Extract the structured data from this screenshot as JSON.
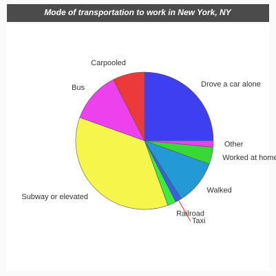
{
  "chart_data": {
    "type": "pie",
    "title": "Mode of transportation to work in New York, NY",
    "categories": [
      "Drove a car alone",
      "Other",
      "Worked at home",
      "Walked",
      "Taxi",
      "Railroad",
      "Subway or elevated",
      "Bus",
      "Carpooled"
    ],
    "values": [
      25,
      1.5,
      4,
      10.5,
      1.5,
      2,
      36,
      12,
      7.5
    ],
    "colors": [
      "#3f3ff2",
      "#e544e5",
      "#36d936",
      "#2399d6",
      "#3363e0",
      "#3ceb3c",
      "#f6f64a",
      "#ec41ec",
      "#ec3a3a"
    ]
  }
}
